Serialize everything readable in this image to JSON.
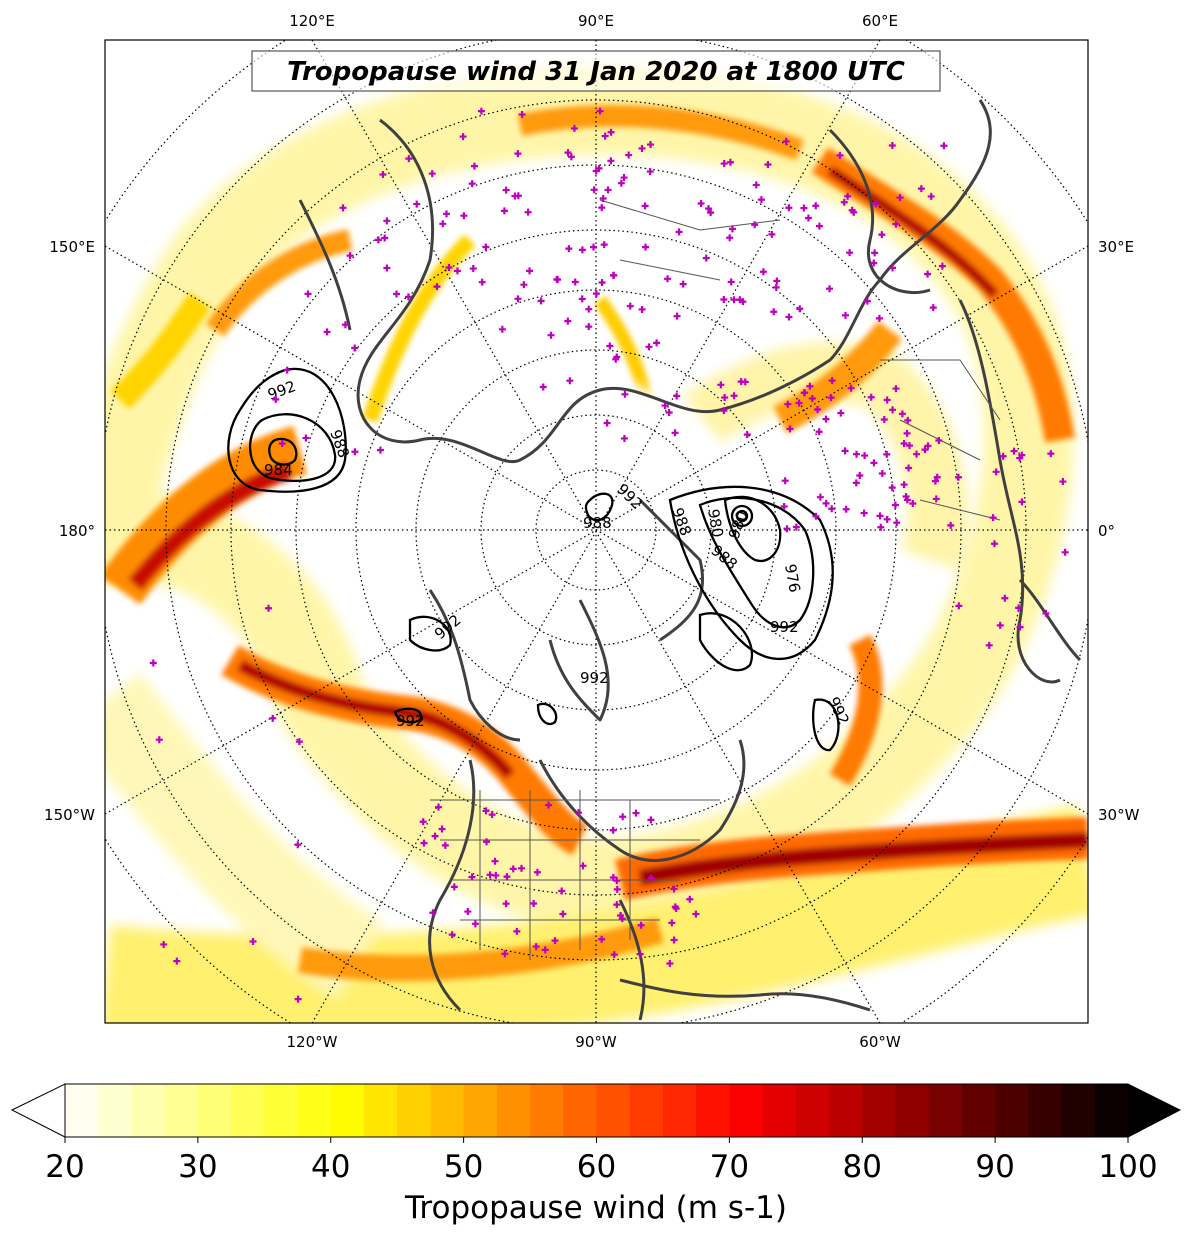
{
  "title": "Tropopause wind 31 Jan 2020 at 1800 UTC",
  "map": {
    "projection": "north polar stereographic",
    "longitude_labels": {
      "top": [
        "120°E",
        "90°E",
        "60°E"
      ],
      "bottom": [
        "120°W",
        "90°W",
        "60°W"
      ],
      "left": [
        "150°E",
        "180°",
        "150°W"
      ],
      "right": [
        "30°E",
        "0°",
        "30°W"
      ]
    },
    "pressure_contour_labels": [
      "992",
      "988",
      "984",
      "992",
      "988",
      "988",
      "980",
      "980",
      "976",
      "988",
      "992",
      "992",
      "992",
      "992",
      "992"
    ],
    "station_marker_color": "#c000c0",
    "coastline_color": "#404040",
    "contour_color": "#000000"
  },
  "colorbar": {
    "label": "Tropopause wind (m s-1)",
    "ticks": [
      "20",
      "30",
      "40",
      "50",
      "60",
      "70",
      "80",
      "90",
      "100"
    ],
    "min": 20,
    "max": 100,
    "step": 2.5,
    "extend": "both",
    "colormap": "hot_r"
  }
}
